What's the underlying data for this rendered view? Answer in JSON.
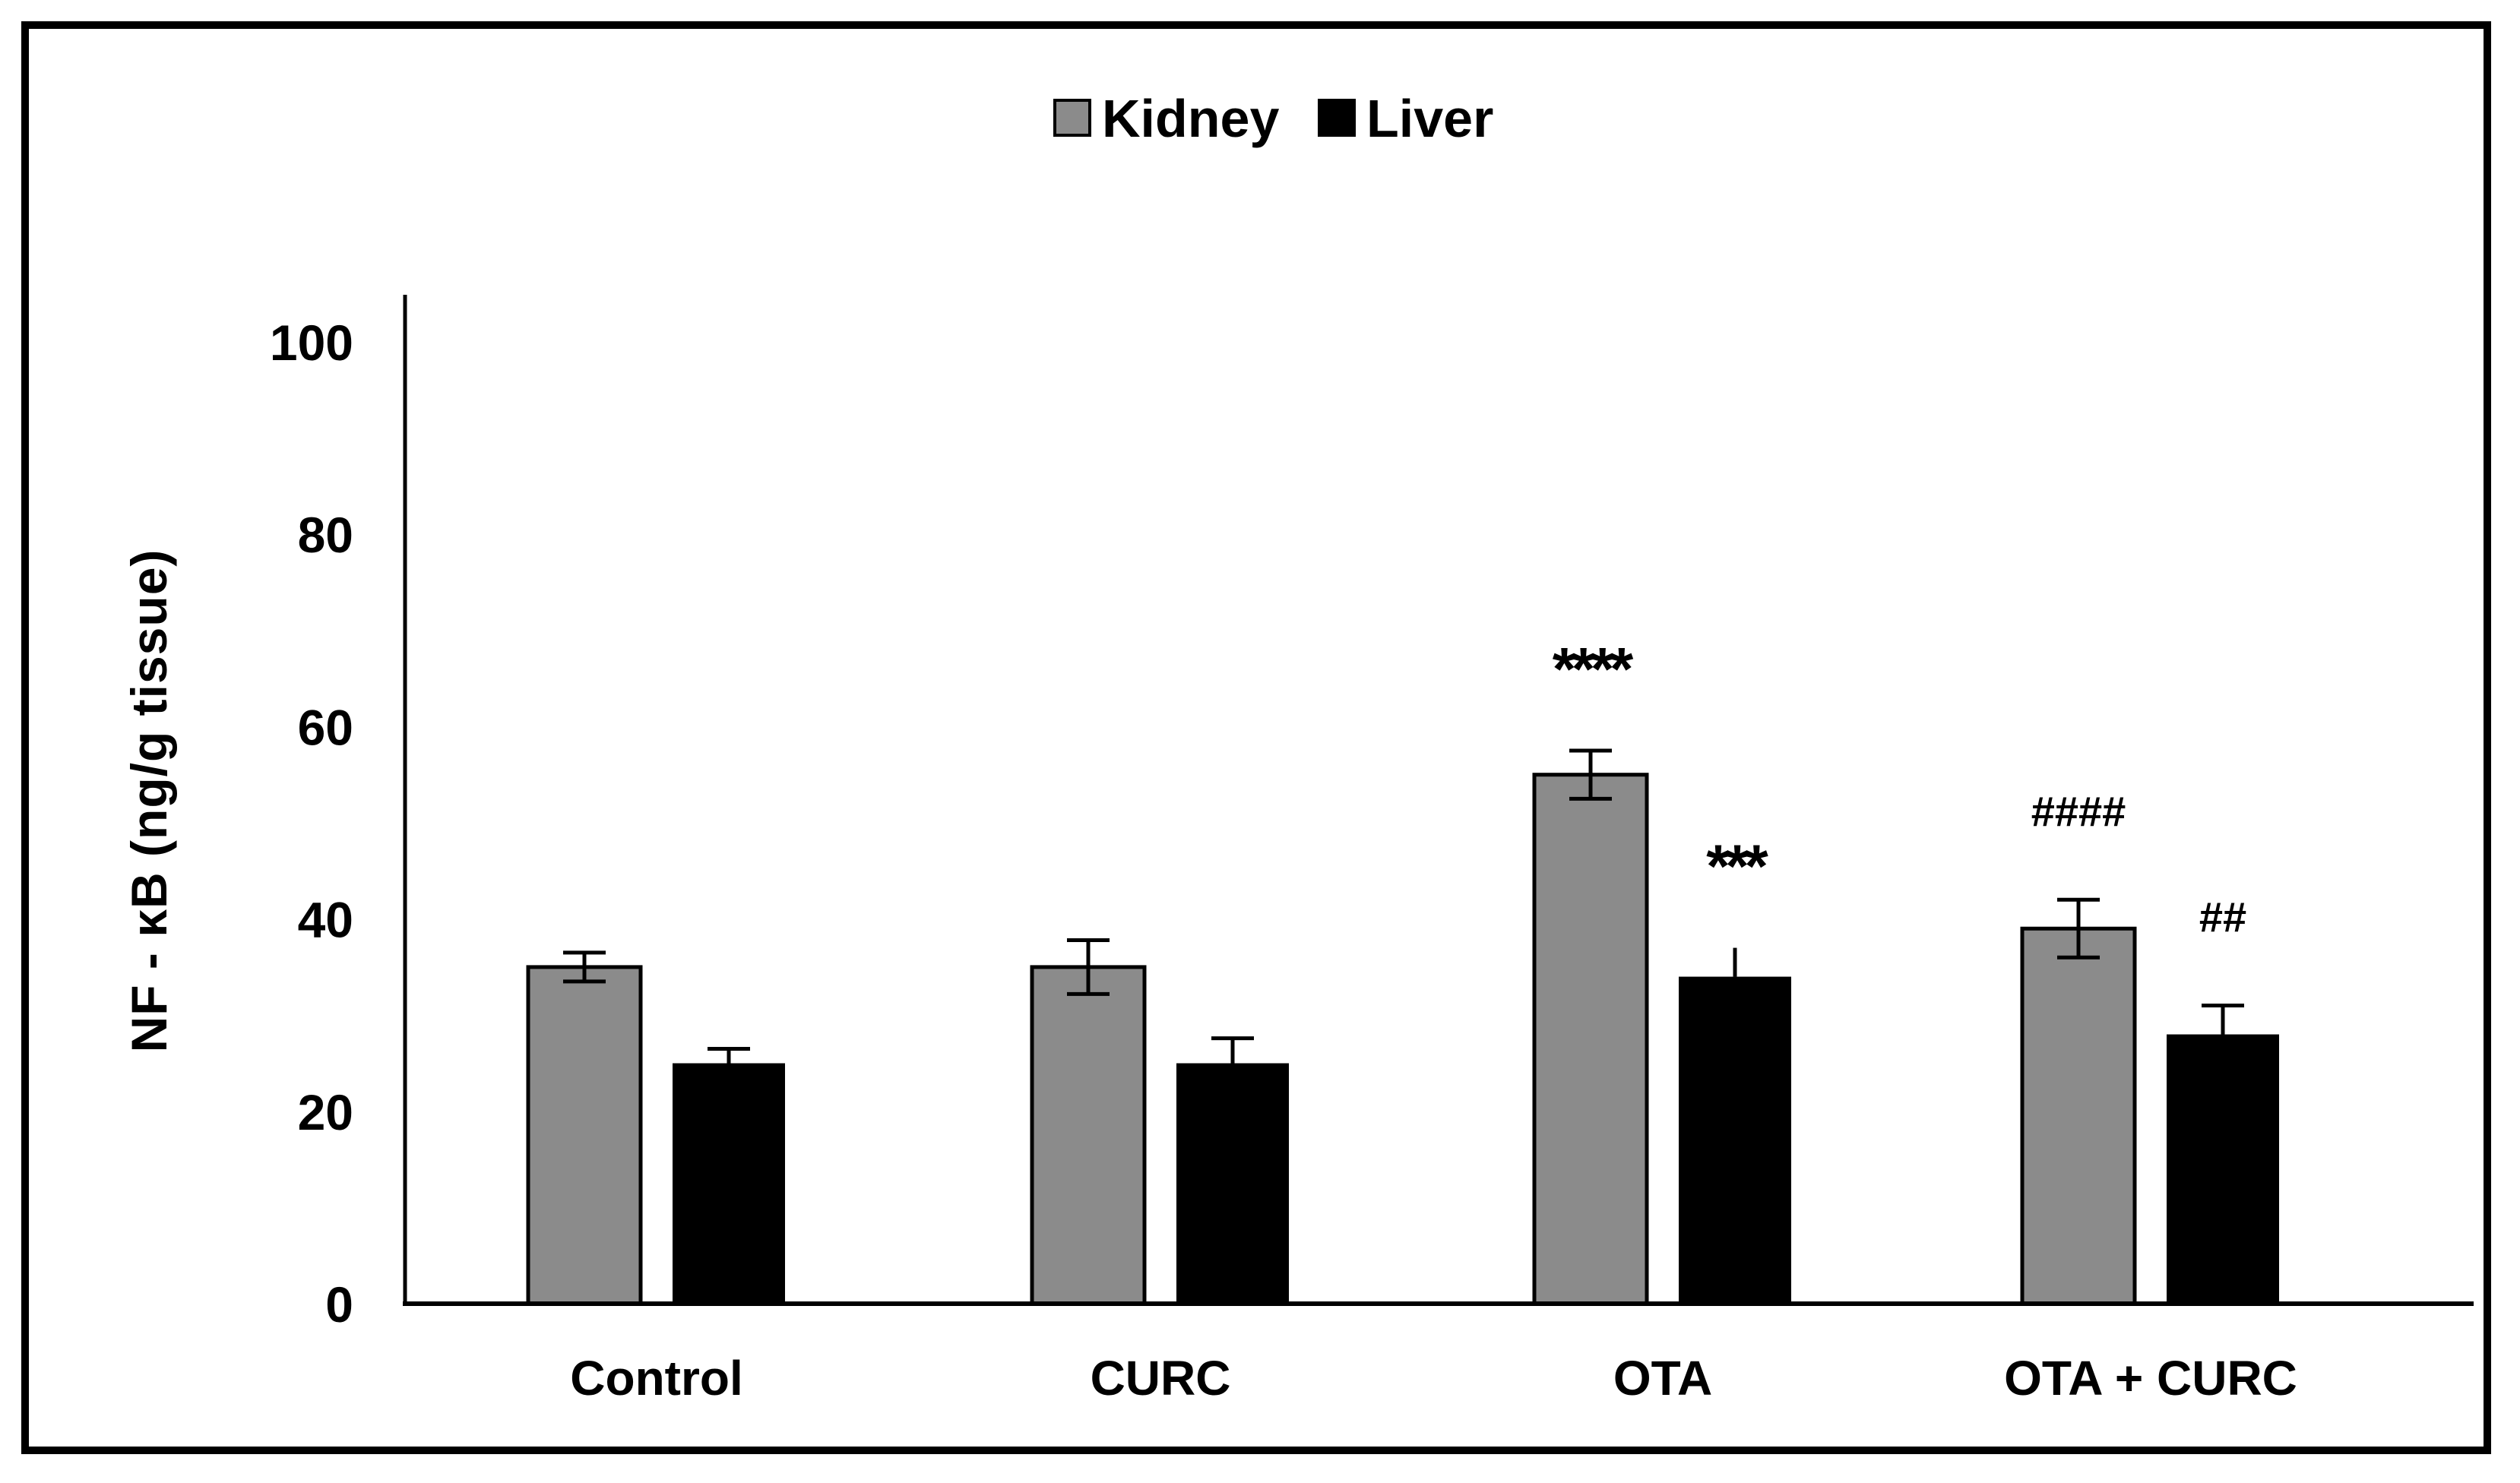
{
  "figure": {
    "y_axis_title": "NF - κB (ng/g tissue)"
  },
  "chart_data": {
    "type": "bar",
    "title": "",
    "xlabel": "",
    "ylabel": "NF - κB (ng/g tissue)",
    "ylim": [
      0,
      105
    ],
    "yticks": [
      0,
      20,
      40,
      60,
      80,
      100
    ],
    "grid": false,
    "legend_position": "top-center",
    "categories": [
      "Control",
      "CURC",
      "OTA",
      "OTA + CURC"
    ],
    "series": [
      {
        "name": "Kidney",
        "color": "#8B8B8B",
        "border_color": "#000000",
        "values": [
          35,
          35,
          55,
          39
        ],
        "errors": [
          1.5,
          2.8,
          2.5,
          3
        ],
        "error_caps": [
          "both",
          "both",
          "both",
          "both"
        ],
        "annotations": [
          "",
          "",
          "****",
          "####"
        ]
      },
      {
        "name": "Liver",
        "color": "#000000",
        "border_color": "#000000",
        "values": [
          25,
          25,
          34,
          28
        ],
        "errors": [
          1.5,
          2.6,
          3,
          3
        ],
        "error_caps": [
          "top",
          "top",
          "none",
          "top"
        ],
        "annotations": [
          "",
          "",
          "***",
          "##"
        ]
      }
    ]
  }
}
